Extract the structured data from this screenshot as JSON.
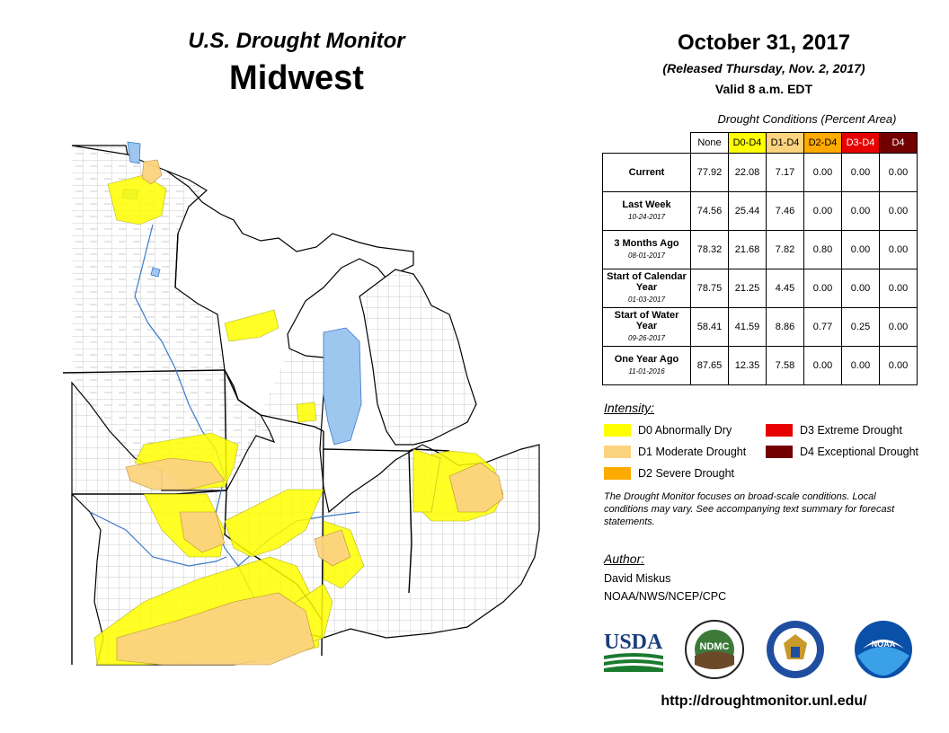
{
  "header": {
    "subtitle": "U.S. Drought Monitor",
    "region": "Midwest",
    "date": "October 31, 2017",
    "released": "(Released Thursday, Nov. 2, 2017)",
    "valid": "Valid 8 a.m. EDT"
  },
  "table": {
    "caption": "Drought Conditions (Percent Area)",
    "columns": [
      "None",
      "D0-D4",
      "D1-D4",
      "D2-D4",
      "D3-D4",
      "D4"
    ],
    "rows": [
      {
        "label": "Current",
        "date": "",
        "values": [
          "77.92",
          "22.08",
          "7.17",
          "0.00",
          "0.00",
          "0.00"
        ]
      },
      {
        "label": "Last Week",
        "date": "10-24-2017",
        "values": [
          "74.56",
          "25.44",
          "7.46",
          "0.00",
          "0.00",
          "0.00"
        ]
      },
      {
        "label": "3 Months Ago",
        "date": "08-01-2017",
        "values": [
          "78.32",
          "21.68",
          "7.82",
          "0.80",
          "0.00",
          "0.00"
        ]
      },
      {
        "label": "Start of Calendar Year",
        "date": "01-03-2017",
        "values": [
          "78.75",
          "21.25",
          "4.45",
          "0.00",
          "0.00",
          "0.00"
        ]
      },
      {
        "label": "Start of Water Year",
        "date": "09-26-2017",
        "values": [
          "58.41",
          "41.59",
          "8.86",
          "0.77",
          "0.25",
          "0.00"
        ]
      },
      {
        "label": "One Year Ago",
        "date": "11-01-2016",
        "values": [
          "87.65",
          "12.35",
          "7.58",
          "0.00",
          "0.00",
          "0.00"
        ]
      }
    ]
  },
  "legend": {
    "title": "Intensity:",
    "items": [
      {
        "label": "D0 Abnormally Dry",
        "color": "#ffff00"
      },
      {
        "label": "D1 Moderate Drought",
        "color": "#fcd37f"
      },
      {
        "label": "D2 Severe Drought",
        "color": "#ffaa00"
      },
      {
        "label": "D3 Extreme Drought",
        "color": "#e60000"
      },
      {
        "label": "D4 Exceptional Drought",
        "color": "#730000"
      }
    ]
  },
  "note": "The Drought Monitor focuses on broad-scale conditions. Local conditions may vary. See accompanying text summary for forecast statements.",
  "author": {
    "title": "Author:",
    "name": "David Miskus",
    "org": "NOAA/NWS/NCEP/CPC"
  },
  "logos": {
    "usda": "USDA",
    "ndmc": "NDMC",
    "noaa": "NOAA"
  },
  "url": "http://droughtmonitor.unl.edu/"
}
